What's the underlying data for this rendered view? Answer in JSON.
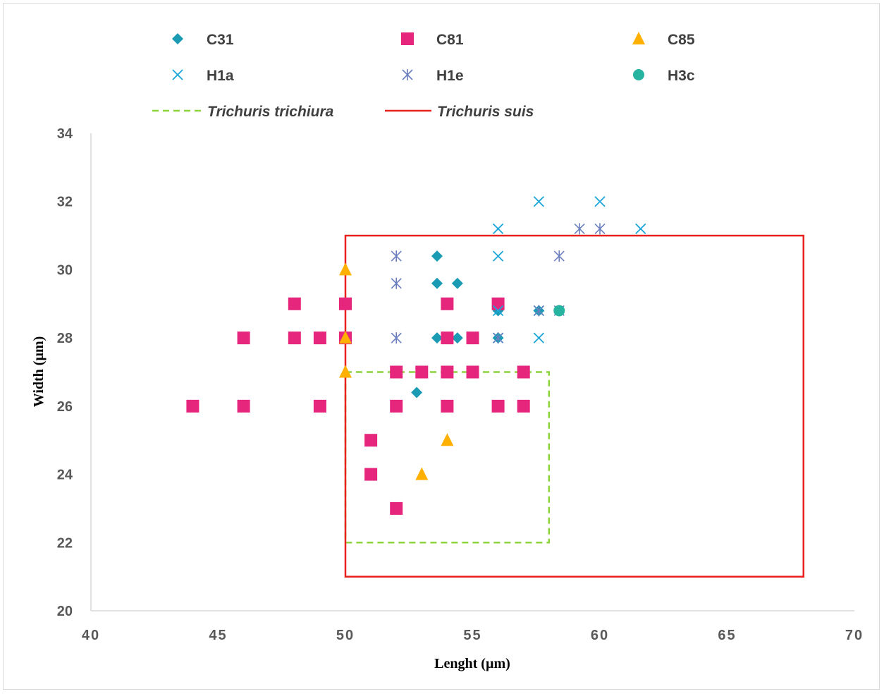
{
  "chart_data": {
    "type": "scatter",
    "xlabel": "Lenght (µm)",
    "ylabel": "Width (µm)",
    "xlim": [
      40,
      70
    ],
    "ylim": [
      20,
      34
    ],
    "x_ticks": [
      "40",
      "45",
      "50",
      "55",
      "60",
      "65",
      "70"
    ],
    "y_ticks": [
      "20",
      "22",
      "24",
      "26",
      "28",
      "30",
      "32",
      "34"
    ],
    "grid": false,
    "legend_position": "top",
    "series": [
      {
        "name": "C31",
        "marker": "diamond",
        "color": "#1a9bb3",
        "points": [
          [
            53.6,
            30.4
          ],
          [
            53.6,
            29.6
          ],
          [
            54.4,
            29.6
          ],
          [
            53.6,
            28
          ],
          [
            54.4,
            28
          ],
          [
            52.8,
            26.4
          ],
          [
            56,
            28.8
          ],
          [
            56,
            28
          ],
          [
            57.6,
            28.8
          ]
        ]
      },
      {
        "name": "C81",
        "marker": "square",
        "color": "#e6267c",
        "points": [
          [
            44,
            26
          ],
          [
            46,
            28
          ],
          [
            46,
            26
          ],
          [
            48,
            29
          ],
          [
            48,
            28
          ],
          [
            49,
            28
          ],
          [
            49,
            26
          ],
          [
            50,
            29
          ],
          [
            50,
            28
          ],
          [
            51,
            25
          ],
          [
            51,
            24
          ],
          [
            52,
            27
          ],
          [
            52,
            26
          ],
          [
            52,
            23
          ],
          [
            53,
            27
          ],
          [
            54,
            29
          ],
          [
            54,
            28
          ],
          [
            54,
            27
          ],
          [
            54,
            26
          ],
          [
            55,
            28
          ],
          [
            55,
            27
          ],
          [
            56,
            29
          ],
          [
            56,
            26
          ],
          [
            57,
            27
          ],
          [
            57,
            26
          ]
        ]
      },
      {
        "name": "C85",
        "marker": "triangle",
        "color": "#ffb000",
        "points": [
          [
            50,
            30
          ],
          [
            50,
            28
          ],
          [
            50,
            27
          ],
          [
            54,
            25
          ],
          [
            53,
            24
          ]
        ]
      },
      {
        "name": "H1a",
        "marker": "x",
        "color": "#1aa6d9",
        "points": [
          [
            57.6,
            32
          ],
          [
            60,
            32
          ],
          [
            56,
            31.2
          ],
          [
            61.6,
            31.2
          ],
          [
            56,
            30.4
          ],
          [
            56,
            28.8
          ],
          [
            57.6,
            28.8
          ],
          [
            57.6,
            28
          ],
          [
            56,
            28
          ]
        ]
      },
      {
        "name": "H1e",
        "marker": "star",
        "color": "#6b7fbf",
        "points": [
          [
            52,
            30.4
          ],
          [
            52,
            29.6
          ],
          [
            52,
            28
          ],
          [
            59.2,
            31.2
          ],
          [
            60,
            31.2
          ],
          [
            58.4,
            30.4
          ],
          [
            57.6,
            28.8
          ],
          [
            58.4,
            28.8
          ],
          [
            56,
            28
          ]
        ]
      },
      {
        "name": "H3c",
        "marker": "circle",
        "color": "#26b3a0",
        "points": [
          [
            58.4,
            28.8
          ]
        ]
      }
    ],
    "regions": [
      {
        "name": "Trichuris trichiura",
        "style": "dashed",
        "color": "#8cd43c",
        "x": [
          50,
          58
        ],
        "y": [
          22,
          27
        ]
      },
      {
        "name": "Trichuris suis",
        "style": "solid",
        "color": "#e8211e",
        "x": [
          50,
          68
        ],
        "y": [
          21,
          31
        ]
      }
    ]
  }
}
